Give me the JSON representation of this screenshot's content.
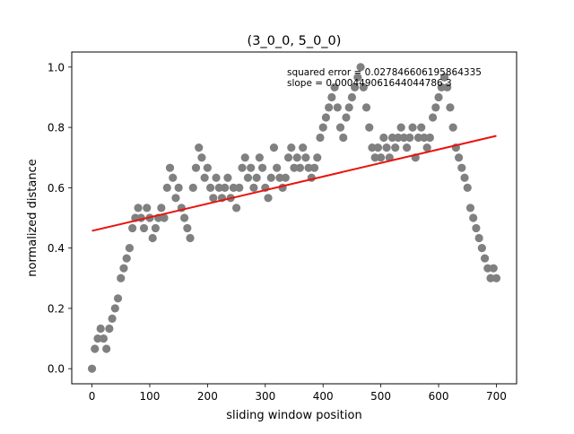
{
  "chart_data": {
    "type": "scatter",
    "title": "(3_0_0, 5_0_0)",
    "xlabel": "sliding window position",
    "ylabel": "normalized distance",
    "xlim": [
      -35,
      735
    ],
    "ylim": [
      -0.05,
      1.05
    ],
    "x_ticks": [
      0,
      100,
      200,
      300,
      400,
      500,
      600,
      700
    ],
    "y_ticks": [
      0.0,
      0.2,
      0.4,
      0.6,
      0.8,
      1.0
    ],
    "x_tick_labels": [
      "0",
      "100",
      "200",
      "300",
      "400",
      "500",
      "600",
      "700"
    ],
    "y_tick_labels": [
      "0.0",
      "0.2",
      "0.4",
      "0.6",
      "0.8",
      "1.0"
    ],
    "grid": false,
    "annotations": [
      "squared error = 0.027846606195864335",
      "slope = 0.000449061644044786 3"
    ],
    "series": [
      {
        "kind": "points",
        "color": "#808080",
        "x": [
          0,
          5,
          10,
          15,
          20,
          25,
          30,
          35,
          40,
          45,
          50,
          55,
          60,
          65,
          70,
          75,
          80,
          85,
          90,
          95,
          100,
          105,
          110,
          115,
          120,
          125,
          130,
          135,
          140,
          145,
          150,
          155,
          160,
          165,
          170,
          175,
          180,
          185,
          190,
          195,
          200,
          205,
          210,
          215,
          220,
          225,
          230,
          235,
          240,
          245,
          250,
          255,
          260,
          265,
          270,
          275,
          280,
          285,
          290,
          295,
          300,
          305,
          310,
          315,
          320,
          325,
          330,
          335,
          340,
          345,
          350,
          355,
          360,
          365,
          370,
          375,
          380,
          385,
          390,
          395,
          400,
          405,
          410,
          415,
          420,
          425,
          430,
          435,
          440,
          445,
          450,
          455,
          460,
          465,
          470,
          475,
          480,
          485,
          490,
          495,
          500,
          505,
          510,
          515,
          520,
          525,
          530,
          535,
          540,
          545,
          550,
          555,
          560,
          565,
          570,
          575,
          580,
          585,
          590,
          595,
          600,
          605,
          610,
          615,
          620,
          625,
          630,
          635,
          640,
          645,
          650,
          655,
          660,
          665,
          670,
          675,
          680,
          685,
          690,
          695,
          700
        ],
        "y": [
          0.0,
          0.066,
          0.1,
          0.133,
          0.1,
          0.066,
          0.133,
          0.166,
          0.2,
          0.233,
          0.3,
          0.333,
          0.366,
          0.4,
          0.466,
          0.5,
          0.533,
          0.5,
          0.466,
          0.533,
          0.5,
          0.433,
          0.466,
          0.5,
          0.533,
          0.5,
          0.6,
          0.666,
          0.633,
          0.566,
          0.6,
          0.533,
          0.5,
          0.466,
          0.433,
          0.6,
          0.666,
          0.733,
          0.7,
          0.633,
          0.666,
          0.6,
          0.566,
          0.633,
          0.6,
          0.566,
          0.6,
          0.633,
          0.566,
          0.6,
          0.533,
          0.6,
          0.666,
          0.7,
          0.633,
          0.666,
          0.6,
          0.633,
          0.7,
          0.666,
          0.6,
          0.566,
          0.633,
          0.733,
          0.666,
          0.633,
          0.6,
          0.633,
          0.7,
          0.733,
          0.666,
          0.7,
          0.666,
          0.733,
          0.7,
          0.666,
          0.633,
          0.666,
          0.7,
          0.766,
          0.8,
          0.833,
          0.866,
          0.9,
          0.933,
          0.866,
          0.8,
          0.766,
          0.833,
          0.866,
          0.9,
          0.933,
          0.966,
          1.0,
          0.933,
          0.866,
          0.8,
          0.733,
          0.7,
          0.733,
          0.7,
          0.766,
          0.733,
          0.7,
          0.766,
          0.733,
          0.766,
          0.8,
          0.766,
          0.733,
          0.766,
          0.8,
          0.7,
          0.766,
          0.8,
          0.766,
          0.733,
          0.766,
          0.833,
          0.866,
          0.9,
          0.933,
          0.966,
          0.933,
          0.866,
          0.8,
          0.733,
          0.7,
          0.666,
          0.633,
          0.6,
          0.533,
          0.5,
          0.466,
          0.433,
          0.4,
          0.366,
          0.333,
          0.3,
          0.333,
          0.3
        ]
      },
      {
        "kind": "fit-line",
        "color": "#e8130e",
        "x": [
          0,
          700
        ],
        "y": [
          0.457,
          0.772
        ]
      }
    ]
  }
}
